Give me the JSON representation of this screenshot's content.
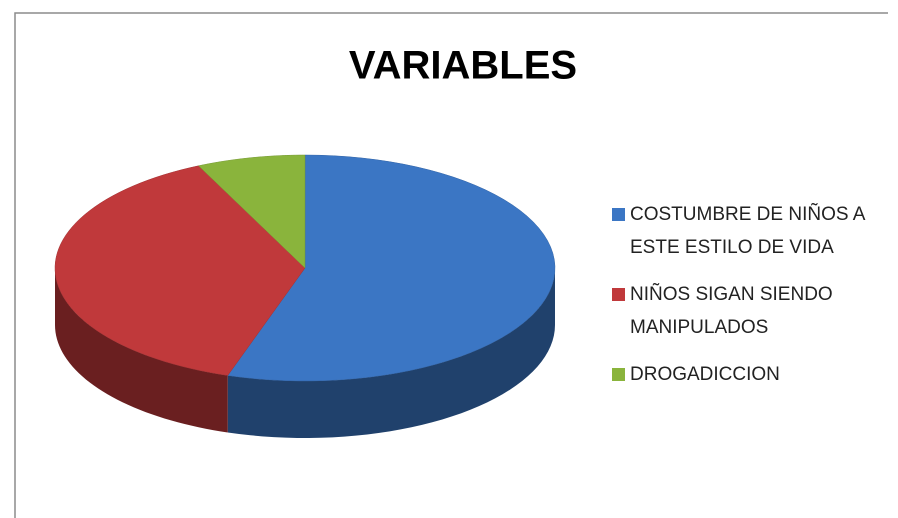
{
  "chart_data": {
    "type": "pie",
    "title": "VARIABLES",
    "categories": [
      "COSTUMBRE DE NIÑOS A ESTE ESTILO DE VIDA",
      "NIÑOS SIGAN SIENDO MANIPULADOS",
      "DROGADICCION"
    ],
    "values": [
      55,
      38,
      7
    ],
    "colors": [
      "#3b76c4",
      "#c0393b",
      "#8ab43c"
    ],
    "legend": "right"
  }
}
